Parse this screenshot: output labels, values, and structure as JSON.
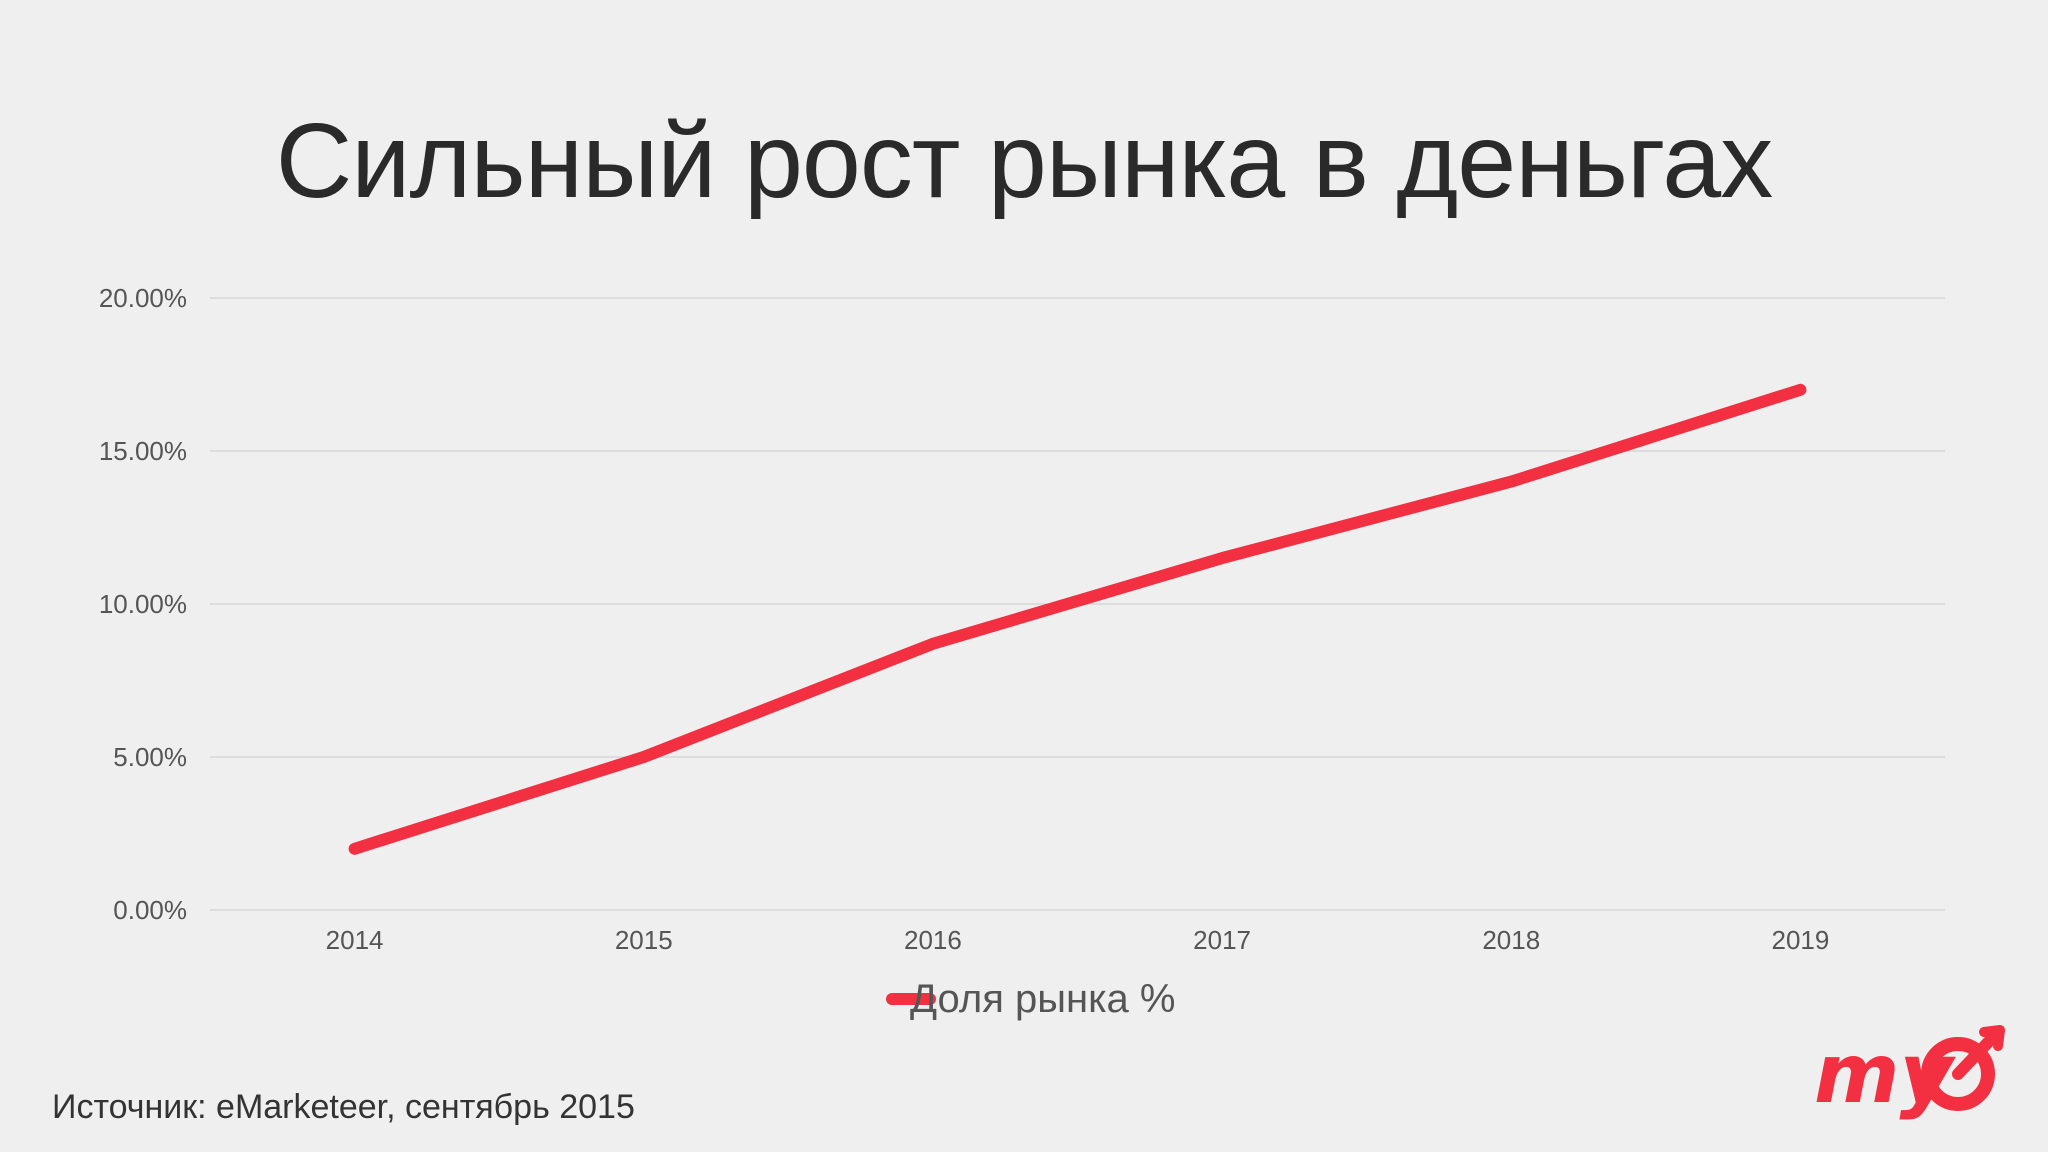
{
  "slide": {
    "title": "Сильный рост рынка в деньгах",
    "source": "Источник: eMarketeer, сентябрь 2015"
  },
  "logo": {
    "text": "my",
    "color": "#f23041"
  },
  "chart_data": {
    "type": "line",
    "title": "",
    "xlabel": "",
    "ylabel": "",
    "categories": [
      "2014",
      "2015",
      "2016",
      "2017",
      "2018",
      "2019"
    ],
    "series": [
      {
        "name": "Доля рынка %",
        "values": [
          2.0,
          5.0,
          8.7,
          11.5,
          14.0,
          17.0
        ],
        "color": "#f23041"
      }
    ],
    "ylim": [
      0,
      20
    ],
    "yticks": [
      "0.00%",
      "5.00%",
      "10.00%",
      "15.00%",
      "20.00%"
    ],
    "ytick_values": [
      0,
      5,
      10,
      15,
      20
    ],
    "grid": true,
    "legend": "bottom-center",
    "colors": {
      "grid": "#d7d7d7",
      "tick_text": "#555555",
      "legend_text": "#555555"
    }
  }
}
